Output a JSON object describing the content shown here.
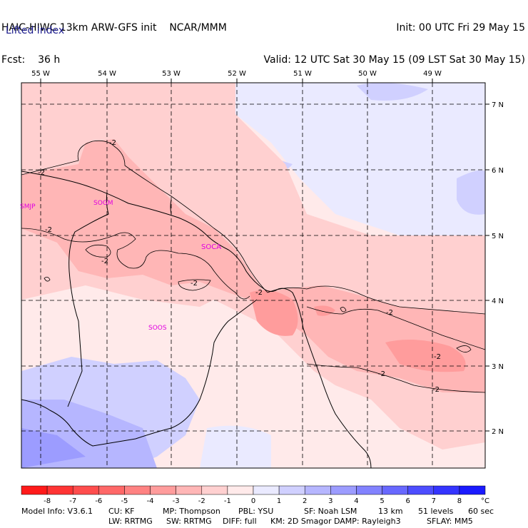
{
  "header": {
    "title_left": "HAIC-HIWC 13km ARW-GFS init",
    "agency": "NCAR/MMM",
    "fcst_label": "Fcst:",
    "fcst_value": "36 h",
    "init": "Init: 00 UTC Fri 29 May 15",
    "valid": "Valid: 12 UTC Sat 30 May 15 (09 LST Sat 30 May 15)"
  },
  "field_label": "Lifted index",
  "map": {
    "lon_labels": [
      "55 W",
      "54 W",
      "53 W",
      "52 W",
      "51 W",
      "50 W",
      "49 W"
    ],
    "lat_labels": [
      "7 N",
      "6 N",
      "5 N",
      "4 N",
      "3 N",
      "2 N"
    ],
    "stations": [
      "SMJP",
      "SOGM",
      "SOCA",
      "SOOS"
    ],
    "contour_labels": [
      "-2",
      "-2",
      "-2",
      "-2",
      "-2",
      "-2",
      "-2",
      "-2",
      "-2",
      "-2"
    ]
  },
  "colorbar": {
    "ticks": [
      "-8",
      "-7",
      "-6",
      "-5",
      "-4",
      "-3",
      "-2",
      "-1",
      "0",
      "1",
      "2",
      "3",
      "4",
      "5",
      "6",
      "7",
      "8"
    ],
    "unit": "°C",
    "colors": [
      "#ff1a1a",
      "#ff3434",
      "#ff4d4d",
      "#ff6868",
      "#ff8282",
      "#ff9c9c",
      "#ffb6b6",
      "#ffd0d0",
      "#ffeaea",
      "#eaeaff",
      "#d0d0ff",
      "#b6b6ff",
      "#9c9cff",
      "#8282ff",
      "#6868ff",
      "#4d4dff",
      "#3434ff",
      "#1a1aff"
    ]
  },
  "footer": {
    "line1": [
      "Model Info: V3.6.1",
      "CU: KF",
      "MP: Thompson",
      "PBL: YSU",
      "SF: Noah LSM",
      "13 km",
      "51 levels",
      "60 sec"
    ],
    "line2": [
      "LW: RRTMG",
      "SW: RRTMG",
      "DIFF: full",
      "KM: 2D Smagor",
      "DAMP: Rayleigh3",
      "SFLAY: MM5"
    ]
  }
}
